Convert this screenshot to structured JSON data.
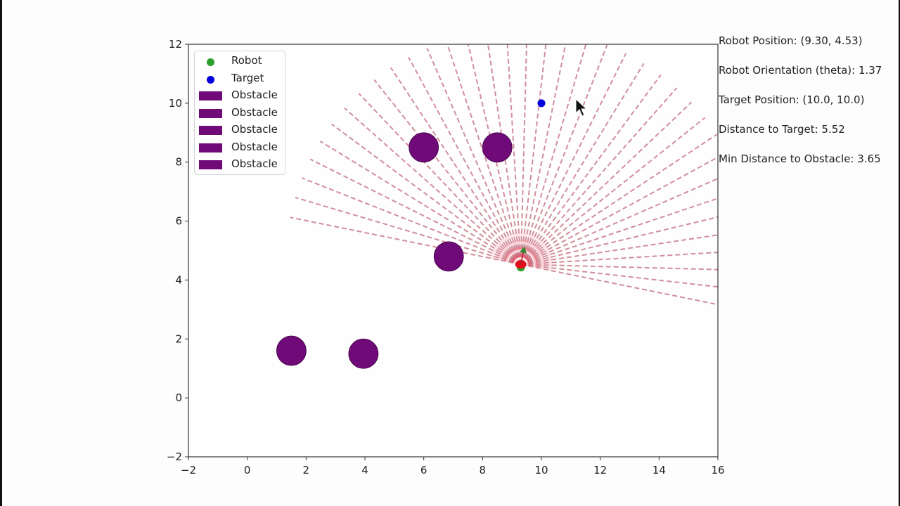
{
  "window": {
    "background": "#fdfdfd"
  },
  "info": {
    "robot_position": "Robot Position: (9.30, 4.53)",
    "robot_orientation": "Robot Orientation (theta): 1.37",
    "target_position": "Target Position: (10.0, 10.0)",
    "distance_to_target": "Distance to Target: 5.52",
    "min_distance_to_obstacle": "Min Distance to Obstacle: 3.65"
  },
  "legend": {
    "items": [
      {
        "label": "Robot",
        "kind": "dot",
        "color": "#2ca02c"
      },
      {
        "label": "Target",
        "kind": "dot",
        "color": "#0000dd"
      },
      {
        "label": "Obstacle",
        "kind": "patch",
        "color": "#6f0a78"
      },
      {
        "label": "Obstacle",
        "kind": "patch",
        "color": "#6f0a78"
      },
      {
        "label": "Obstacle",
        "kind": "patch",
        "color": "#6f0a78"
      },
      {
        "label": "Obstacle",
        "kind": "patch",
        "color": "#6f0a78"
      },
      {
        "label": "Obstacle",
        "kind": "patch",
        "color": "#6f0a78"
      }
    ]
  },
  "colors": {
    "robot": "#2ca02c",
    "target": "#0000dd",
    "obstacle": "#6f0a78",
    "ray": "#c97a8a",
    "sensor_core": "#e0101c",
    "heading_arrow": "#2e8b2e",
    "axis": "#333333"
  },
  "chart_data": {
    "type": "scatter",
    "title": "",
    "xlabel": "",
    "ylabel": "",
    "xlim": [
      -2,
      16
    ],
    "ylim": [
      -2,
      12
    ],
    "xticks": [
      -2,
      0,
      2,
      4,
      6,
      8,
      10,
      12,
      14,
      16
    ],
    "yticks": [
      -2,
      0,
      2,
      4,
      6,
      8,
      10,
      12
    ],
    "xtick_labels": [
      "−2",
      "0",
      "2",
      "4",
      "6",
      "8",
      "10",
      "12",
      "14",
      "16"
    ],
    "ytick_labels": [
      "−2",
      "0",
      "2",
      "4",
      "6",
      "8",
      "10",
      "12"
    ],
    "grid": false,
    "legend_position": "upper left",
    "robot": {
      "x": 9.3,
      "y": 4.53,
      "theta": 1.37
    },
    "target": {
      "x": 10.0,
      "y": 10.0
    },
    "obstacles": [
      {
        "x": 6.0,
        "y": 8.5,
        "r": 0.5
      },
      {
        "x": 8.5,
        "y": 8.5,
        "r": 0.5
      },
      {
        "x": 6.85,
        "y": 4.8,
        "r": 0.5
      },
      {
        "x": 1.5,
        "y": 1.6,
        "r": 0.5
      },
      {
        "x": 3.95,
        "y": 1.5,
        "r": 0.5
      }
    ],
    "sensor_rays": {
      "count": 37,
      "angle_span_rad": 3.1416,
      "length": 8.0,
      "style": "dashed"
    },
    "metrics": {
      "distance_to_target": 5.52,
      "min_distance_to_obstacle": 3.65
    }
  }
}
